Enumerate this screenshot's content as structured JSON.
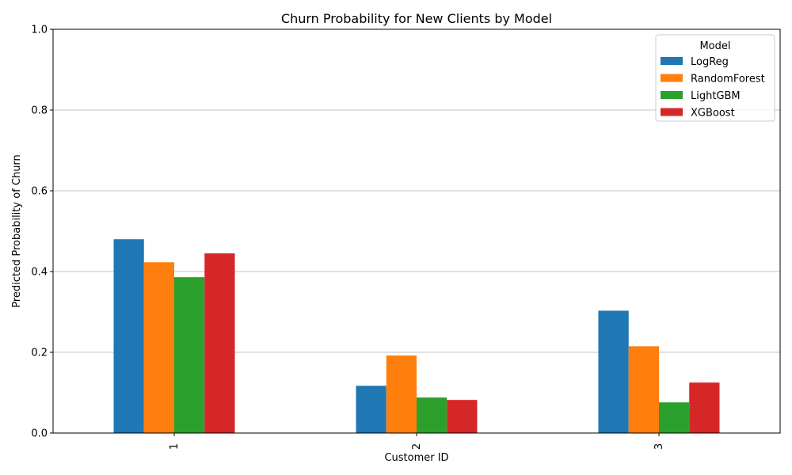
{
  "chart_data": {
    "type": "bar",
    "title": "Churn Probability for New Clients by Model",
    "xlabel": "Customer ID",
    "ylabel": "Predicted Probability of Churn",
    "categories": [
      "1",
      "2",
      "3"
    ],
    "ylim": [
      0,
      1.0
    ],
    "yticks": [
      "0.0",
      "0.2",
      "0.4",
      "0.6",
      "0.8",
      "1.0"
    ],
    "grid": "horizontal",
    "legend_title": "Model",
    "legend_position": "top-right",
    "series": [
      {
        "name": "LogReg",
        "color": "#1f77b4",
        "values": [
          0.48,
          0.117,
          0.303
        ]
      },
      {
        "name": "RandomForest",
        "color": "#ff7f0e",
        "values": [
          0.423,
          0.192,
          0.215
        ]
      },
      {
        "name": "LightGBM",
        "color": "#2ca02c",
        "values": [
          0.386,
          0.088,
          0.076
        ]
      },
      {
        "name": "XGBoost",
        "color": "#d62728",
        "values": [
          0.445,
          0.082,
          0.125
        ]
      }
    ]
  }
}
